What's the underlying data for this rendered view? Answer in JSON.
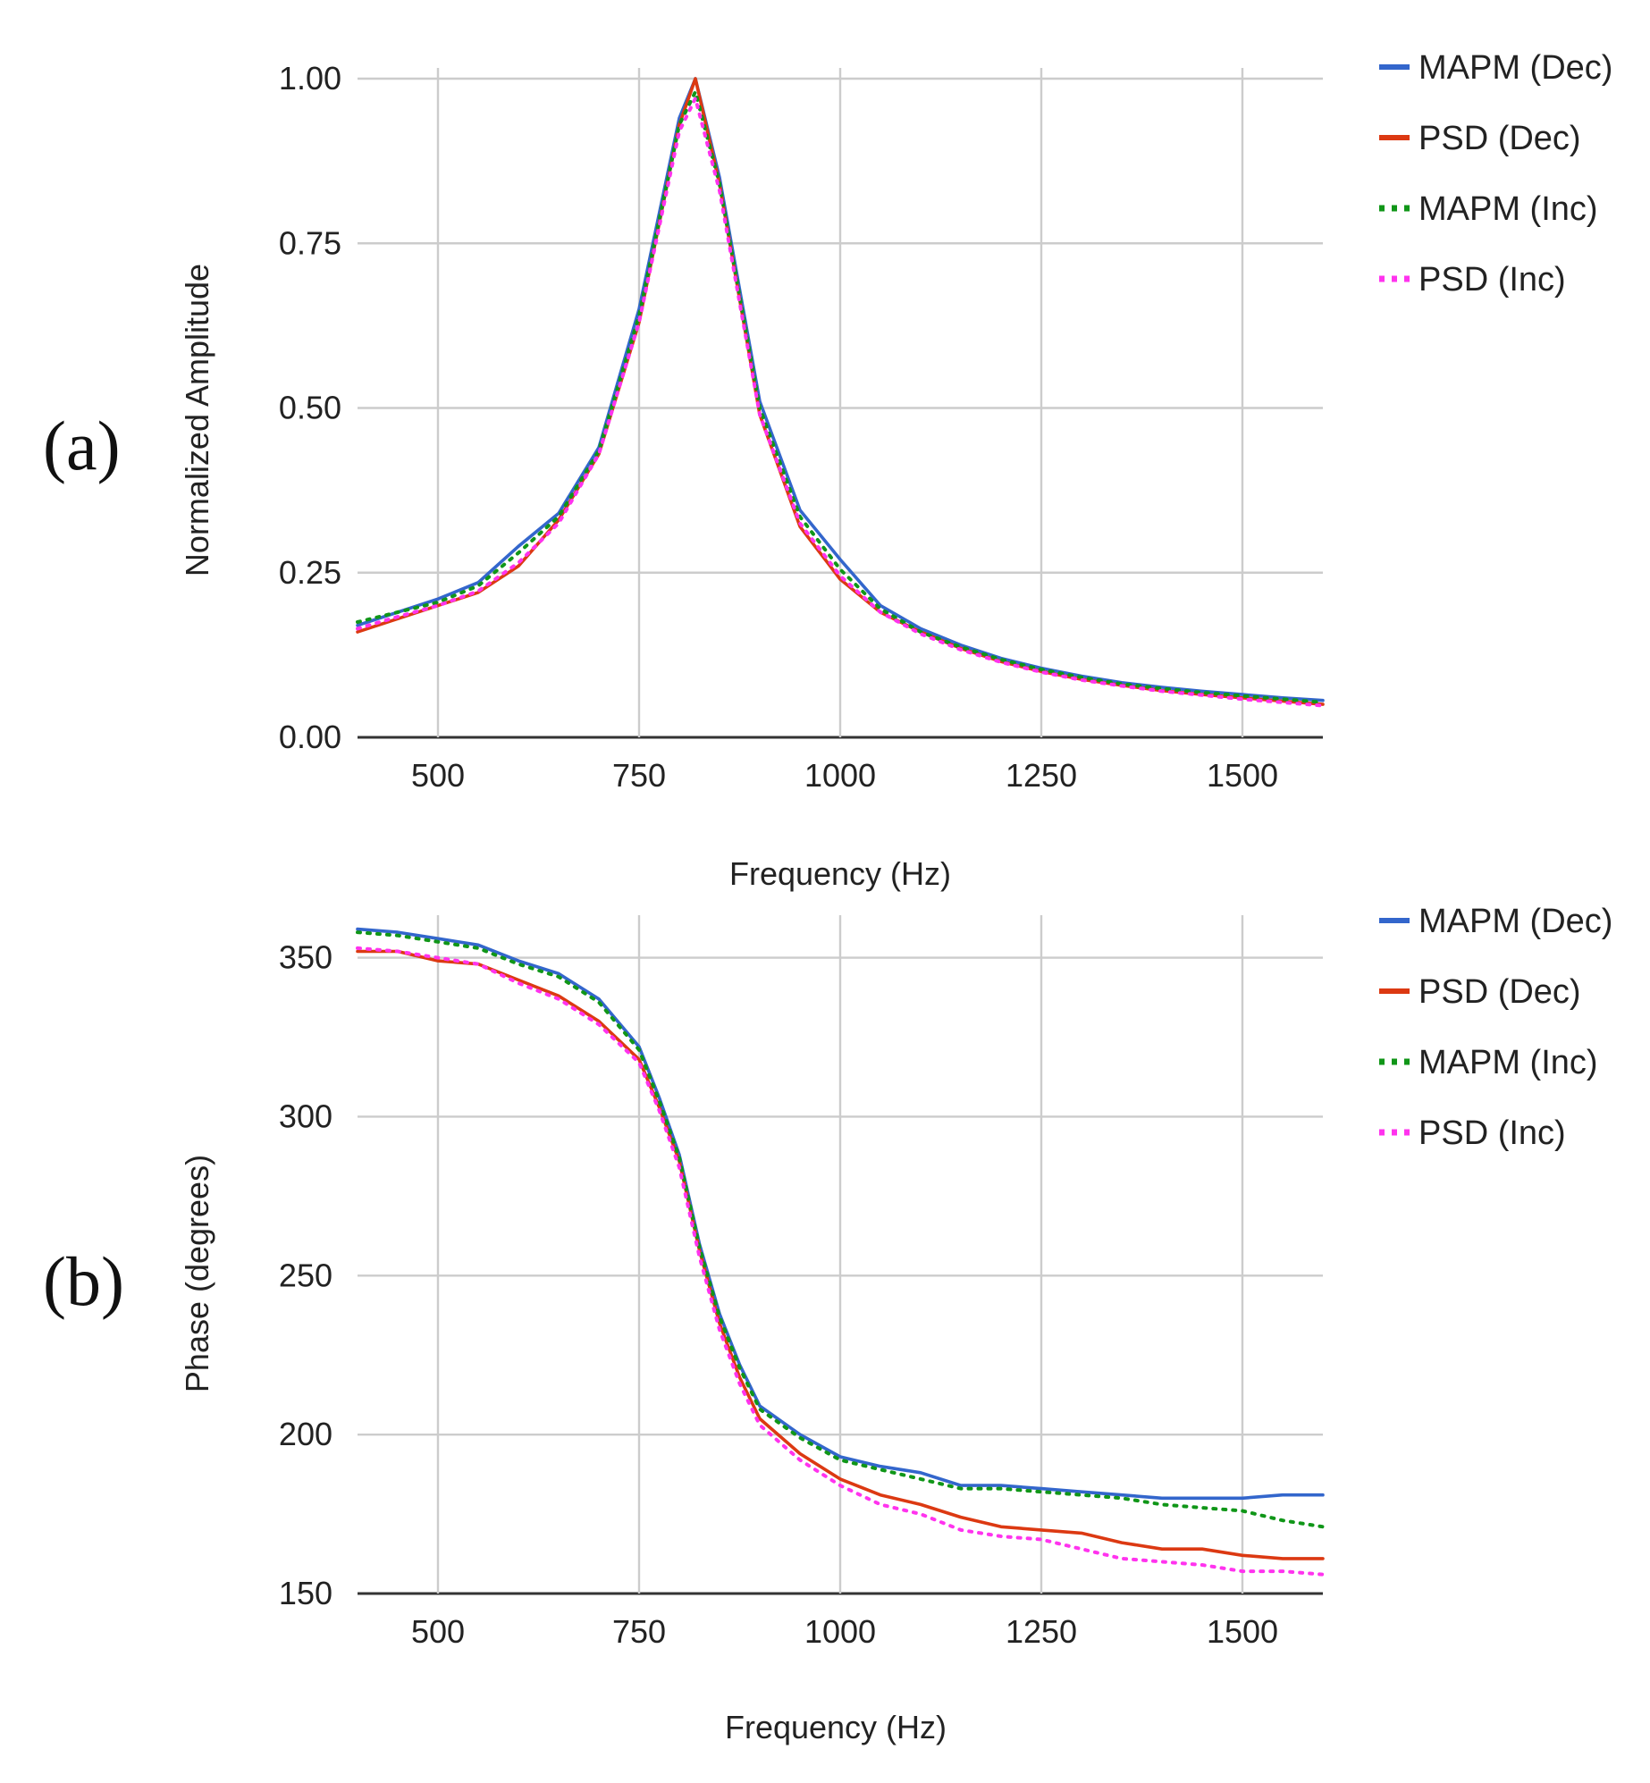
{
  "colors": {
    "mapm_dec": "#3366cc",
    "psd_dec": "#dc3912",
    "mapm_inc": "#109618",
    "psd_inc": "#ff33ee",
    "grid": "#cccccc",
    "text": "#222222"
  },
  "chart_data": [
    {
      "panel_label": "(a)",
      "type": "line",
      "title": "",
      "xlabel": "Frequency (Hz)",
      "ylabel": "Normalized Amplitude",
      "xlim": [
        400,
        1600
      ],
      "ylim": [
        0,
        1
      ],
      "xticks": [
        500,
        750,
        1000,
        1250,
        1500
      ],
      "xtick_labels": [
        "500",
        "750",
        "1000",
        "1250",
        "1500"
      ],
      "yticks": [
        0,
        0.25,
        0.5,
        0.75,
        1.0
      ],
      "ytick_labels": [
        "0.00",
        "0.25",
        "0.50",
        "0.75",
        "1.00"
      ],
      "grid": true,
      "legend_position": "right",
      "series": [
        {
          "name": "MAPM (Dec)",
          "color": "#3366cc",
          "style": "solid",
          "x": [
            400,
            450,
            500,
            550,
            600,
            650,
            700,
            750,
            800,
            820,
            850,
            900,
            950,
            1000,
            1050,
            1100,
            1150,
            1200,
            1250,
            1300,
            1350,
            1400,
            1450,
            1500,
            1550,
            1600
          ],
          "y": [
            0.17,
            0.19,
            0.21,
            0.235,
            0.29,
            0.34,
            0.44,
            0.65,
            0.94,
            1.0,
            0.85,
            0.51,
            0.345,
            0.27,
            0.2,
            0.165,
            0.14,
            0.12,
            0.105,
            0.093,
            0.083,
            0.076,
            0.07,
            0.065,
            0.06,
            0.056
          ]
        },
        {
          "name": "PSD (Dec)",
          "color": "#dc3912",
          "style": "solid",
          "x": [
            400,
            450,
            500,
            550,
            600,
            650,
            700,
            750,
            800,
            820,
            850,
            900,
            950,
            1000,
            1050,
            1100,
            1150,
            1200,
            1250,
            1300,
            1350,
            1400,
            1450,
            1500,
            1550,
            1600
          ],
          "y": [
            0.16,
            0.18,
            0.2,
            0.22,
            0.26,
            0.33,
            0.43,
            0.63,
            0.93,
            1.0,
            0.84,
            0.49,
            0.32,
            0.24,
            0.19,
            0.16,
            0.135,
            0.115,
            0.1,
            0.088,
            0.079,
            0.071,
            0.065,
            0.06,
            0.055,
            0.05
          ]
        },
        {
          "name": "MAPM (Inc)",
          "color": "#109618",
          "style": "dotted",
          "x": [
            400,
            450,
            500,
            550,
            600,
            650,
            700,
            750,
            800,
            820,
            850,
            900,
            950,
            1000,
            1050,
            1100,
            1150,
            1200,
            1250,
            1300,
            1350,
            1400,
            1450,
            1500,
            1550,
            1600
          ],
          "y": [
            0.175,
            0.19,
            0.205,
            0.23,
            0.28,
            0.335,
            0.435,
            0.64,
            0.93,
            0.98,
            0.84,
            0.5,
            0.335,
            0.255,
            0.195,
            0.16,
            0.137,
            0.118,
            0.103,
            0.091,
            0.081,
            0.074,
            0.068,
            0.063,
            0.058,
            0.053
          ]
        },
        {
          "name": "PSD (Inc)",
          "color": "#ff33ee",
          "style": "dotted",
          "x": [
            400,
            450,
            500,
            550,
            600,
            650,
            700,
            750,
            800,
            820,
            850,
            900,
            950,
            1000,
            1050,
            1100,
            1150,
            1200,
            1250,
            1300,
            1350,
            1400,
            1450,
            1500,
            1550,
            1600
          ],
          "y": [
            0.165,
            0.183,
            0.2,
            0.222,
            0.265,
            0.325,
            0.43,
            0.63,
            0.92,
            0.97,
            0.83,
            0.49,
            0.325,
            0.245,
            0.19,
            0.157,
            0.133,
            0.114,
            0.099,
            0.087,
            0.078,
            0.07,
            0.064,
            0.058,
            0.053,
            0.048
          ]
        }
      ]
    },
    {
      "panel_label": "(b)",
      "type": "line",
      "title": "",
      "xlabel": "Frequency (Hz)",
      "ylabel": "Phase (degrees)",
      "xlim": [
        400,
        1600
      ],
      "ylim": [
        150,
        360
      ],
      "xticks": [
        500,
        750,
        1000,
        1250,
        1500
      ],
      "xtick_labels": [
        "500",
        "750",
        "1000",
        "1250",
        "1500"
      ],
      "yticks": [
        150,
        200,
        250,
        300,
        350
      ],
      "ytick_labels": [
        "150",
        "200",
        "250",
        "300",
        "350"
      ],
      "grid": true,
      "legend_position": "right",
      "series": [
        {
          "name": "MAPM (Dec)",
          "color": "#3366cc",
          "style": "solid",
          "x": [
            400,
            450,
            500,
            550,
            600,
            650,
            700,
            750,
            775,
            800,
            825,
            850,
            875,
            900,
            950,
            1000,
            1050,
            1100,
            1150,
            1200,
            1250,
            1300,
            1350,
            1400,
            1450,
            1500,
            1550,
            1600
          ],
          "y": [
            359,
            358,
            356,
            354,
            349,
            345,
            337,
            322,
            306,
            288,
            260,
            238,
            222,
            209,
            200,
            193,
            190,
            188,
            184,
            184,
            183,
            182,
            181,
            180,
            180,
            180,
            181,
            181
          ]
        },
        {
          "name": "PSD (Dec)",
          "color": "#dc3912",
          "style": "solid",
          "x": [
            400,
            450,
            500,
            550,
            600,
            650,
            700,
            750,
            775,
            800,
            825,
            850,
            875,
            900,
            950,
            1000,
            1050,
            1100,
            1150,
            1200,
            1250,
            1300,
            1350,
            1400,
            1450,
            1500,
            1550,
            1600
          ],
          "y": [
            352,
            352,
            349,
            348,
            343,
            338,
            330,
            318,
            303,
            286,
            258,
            235,
            218,
            205,
            194,
            186,
            181,
            178,
            174,
            171,
            170,
            169,
            166,
            164,
            164,
            162,
            161,
            161
          ]
        },
        {
          "name": "MAPM (Inc)",
          "color": "#109618",
          "style": "dotted",
          "x": [
            400,
            450,
            500,
            550,
            600,
            650,
            700,
            750,
            775,
            800,
            825,
            850,
            875,
            900,
            950,
            1000,
            1050,
            1100,
            1150,
            1200,
            1250,
            1300,
            1350,
            1400,
            1450,
            1500,
            1550,
            1600
          ],
          "y": [
            358,
            357,
            355,
            353,
            348,
            344,
            336,
            321,
            305,
            287,
            259,
            237,
            221,
            208,
            199,
            192,
            189,
            186,
            183,
            183,
            182,
            181,
            180,
            178,
            177,
            176,
            173,
            171
          ]
        },
        {
          "name": "PSD (Inc)",
          "color": "#ff33ee",
          "style": "dotted",
          "x": [
            400,
            450,
            500,
            550,
            600,
            650,
            700,
            750,
            775,
            800,
            825,
            850,
            875,
            900,
            950,
            1000,
            1050,
            1100,
            1150,
            1200,
            1250,
            1300,
            1350,
            1400,
            1450,
            1500,
            1550,
            1600
          ],
          "y": [
            353,
            352,
            350,
            348,
            342,
            337,
            329,
            317,
            302,
            284,
            256,
            233,
            216,
            203,
            192,
            184,
            178,
            175,
            170,
            168,
            167,
            164,
            161,
            160,
            159,
            157,
            157,
            156
          ]
        }
      ]
    }
  ]
}
